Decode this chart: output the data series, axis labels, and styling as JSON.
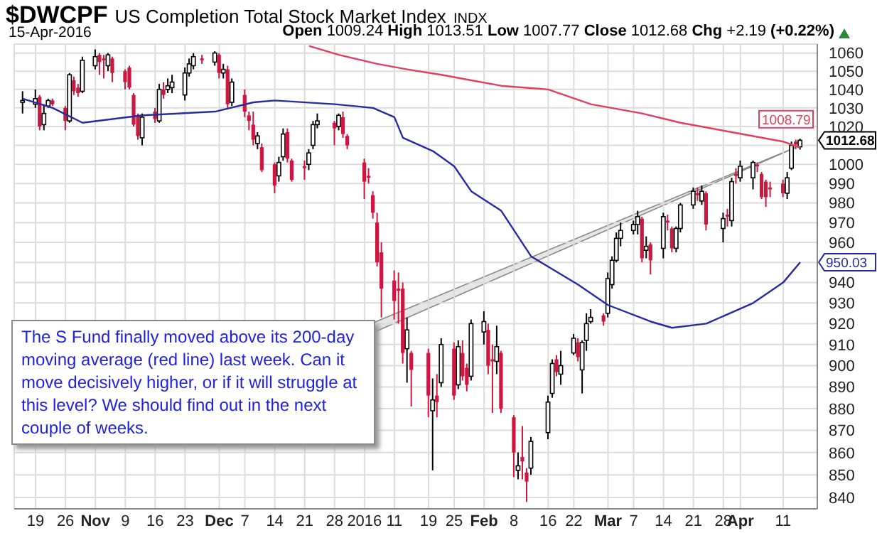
{
  "chart_data": {
    "type": "candlestick",
    "title": "$DWCPF",
    "subtitle": "US Completion Total Stock Market Index",
    "annotations": [
      "INDX",
      "15-Apr-2016",
      "Open 1009.24 High 1013.51 Low 1007.77 Close 1012.68 Chg +2.19 (+0.22%)",
      {
        "text": "The S Fund finally moved above its 200-day moving average (red line) last week. Can it move decisively higher, or if it will struggle at this level? We should find out in the next couple of weeks.",
        "x": "2016-04-14",
        "y": 1009
      }
    ],
    "x": [
      "2015-10-16",
      "2015-10-19",
      "2015-10-20",
      "2015-10-21",
      "2015-10-22",
      "2015-10-23",
      "2015-10-26",
      "2015-10-27",
      "2015-10-28",
      "2015-10-29",
      "2015-10-30",
      "2015-11-02",
      "2015-11-03",
      "2015-11-04",
      "2015-11-05",
      "2015-11-06",
      "2015-11-09",
      "2015-11-10",
      "2015-11-11",
      "2015-11-12",
      "2015-11-13",
      "2015-11-16",
      "2015-11-17",
      "2015-11-18",
      "2015-11-19",
      "2015-11-20",
      "2015-11-23",
      "2015-11-24",
      "2015-11-25",
      "2015-11-27",
      "2015-11-30",
      "2015-12-01",
      "2015-12-02",
      "2015-12-03",
      "2015-12-04",
      "2015-12-07",
      "2015-12-08",
      "2015-12-09",
      "2015-12-10",
      "2015-12-11",
      "2015-12-14",
      "2015-12-15",
      "2015-12-16",
      "2015-12-17",
      "2015-12-18",
      "2015-12-21",
      "2015-12-22",
      "2015-12-23",
      "2015-12-24",
      "2015-12-28",
      "2015-12-29",
      "2015-12-30",
      "2015-12-31",
      "2016-01-04",
      "2016-01-05",
      "2016-01-06",
      "2016-01-07",
      "2016-01-08",
      "2016-01-11",
      "2016-01-12",
      "2016-01-13",
      "2016-01-14",
      "2016-01-15",
      "2016-01-19",
      "2016-01-20",
      "2016-01-21",
      "2016-01-22",
      "2016-01-25",
      "2016-01-26",
      "2016-01-27",
      "2016-01-28",
      "2016-01-29",
      "2016-02-01",
      "2016-02-02",
      "2016-02-03",
      "2016-02-04",
      "2016-02-05",
      "2016-02-08",
      "2016-02-09",
      "2016-02-10",
      "2016-02-11",
      "2016-02-12",
      "2016-02-16",
      "2016-02-17",
      "2016-02-18",
      "2016-02-19",
      "2016-02-22",
      "2016-02-23",
      "2016-02-24",
      "2016-02-25",
      "2016-02-26",
      "2016-02-29",
      "2016-03-01",
      "2016-03-02",
      "2016-03-03",
      "2016-03-04",
      "2016-03-07",
      "2016-03-08",
      "2016-03-09",
      "2016-03-10",
      "2016-03-11",
      "2016-03-14",
      "2016-03-15",
      "2016-03-16",
      "2016-03-17",
      "2016-03-18",
      "2016-03-21",
      "2016-03-22",
      "2016-03-23",
      "2016-03-24",
      "2016-03-28",
      "2016-03-29",
      "2016-03-30",
      "2016-03-31",
      "2016-04-01",
      "2016-04-04",
      "2016-04-05",
      "2016-04-06",
      "2016-04-07",
      "2016-04-08",
      "2016-04-11",
      "2016-04-12",
      "2016-04-13",
      "2016-04-14",
      "2016-04-15"
    ],
    "ohlc": [
      [
        1033,
        1039,
        1027,
        1034
      ],
      [
        1032,
        1040,
        1030,
        1035
      ],
      [
        1036,
        1037,
        1018,
        1020
      ],
      [
        1021,
        1032,
        1018,
        1027
      ],
      [
        1031,
        1035,
        1030,
        1034
      ],
      [
        1034,
        1035,
        1031,
        1032
      ],
      [
        1030,
        1031,
        1018,
        1023
      ],
      [
        1023,
        1049,
        1022,
        1048
      ],
      [
        1045,
        1047,
        1037,
        1039
      ],
      [
        1041,
        1043,
        1036,
        1038
      ],
      [
        1039,
        1058,
        1038,
        1056
      ],
      [
        1053,
        1062,
        1051,
        1058
      ],
      [
        1059,
        1060,
        1048,
        1055
      ],
      [
        1057,
        1059,
        1046,
        1056
      ],
      [
        1053,
        1060,
        1050,
        1059
      ],
      [
        1057,
        1058,
        1044,
        1049
      ],
      [
        1050,
        1051,
        1040,
        1044
      ],
      [
        1052,
        1053,
        1040,
        1041
      ],
      [
        1037,
        1038,
        1020,
        1021
      ],
      [
        1026,
        1027,
        1013,
        1015
      ],
      [
        1014,
        1027,
        1010,
        1025
      ],
      [
        1028,
        1030,
        1022,
        1024
      ],
      [
        1023,
        1043,
        1022,
        1040
      ],
      [
        1040,
        1044,
        1035,
        1037
      ],
      [
        1040,
        1046,
        1038,
        1042
      ],
      [
        1041,
        1048,
        1038,
        1044
      ],
      [
        1037,
        1052,
        1034,
        1049
      ],
      [
        1049,
        1057,
        1047,
        1054
      ],
      [
        1053,
        1060,
        1051,
        1058
      ],
      [
        1057,
        1059,
        1054,
        1056
      ],
      [
        1055,
        1061,
        1053,
        1060
      ],
      [
        1059,
        1060,
        1046,
        1049
      ],
      [
        1049,
        1054,
        1046,
        1051
      ],
      [
        1051,
        1053,
        1030,
        1032
      ],
      [
        1033,
        1046,
        1031,
        1044
      ],
      [
        1037,
        1040,
        1025,
        1028
      ],
      [
        1026,
        1028,
        1018,
        1023
      ],
      [
        1021,
        1028,
        1010,
        1013
      ],
      [
        1011,
        1017,
        1008,
        1015
      ],
      [
        1009,
        1011,
        996,
        997
      ],
      [
        1000,
        1001,
        985,
        989
      ],
      [
        994,
        1004,
        991,
        1001
      ],
      [
        1004,
        1019,
        1002,
        1016
      ],
      [
        1017,
        1019,
        1001,
        1003
      ],
      [
        1002,
        1003,
        991,
        992
      ],
      [
        999,
        1002,
        992,
        998
      ],
      [
        1000,
        1008,
        997,
        1006
      ],
      [
        1010,
        1023,
        1008,
        1021
      ],
      [
        1021,
        1027,
        1019,
        1023
      ],
      [
        1022,
        1023,
        1010,
        1019
      ],
      [
        1020,
        1027,
        1018,
        1026
      ],
      [
        1025,
        1028,
        1014,
        1016
      ],
      [
        1015,
        1016,
        1008,
        1010
      ],
      [
        1001,
        1003,
        982,
        991
      ],
      [
        994,
        998,
        990,
        993
      ],
      [
        984,
        986,
        972,
        975
      ],
      [
        970,
        975,
        948,
        950
      ],
      [
        955,
        960,
        923,
        937
      ],
      [
        941,
        946,
        922,
        931
      ],
      [
        937,
        945,
        920,
        936
      ],
      [
        937,
        940,
        901,
        906
      ],
      [
        908,
        923,
        892,
        917
      ],
      [
        906,
        907,
        881,
        898
      ],
      [
        906,
        908,
        876,
        886
      ],
      [
        879,
        894,
        852,
        884
      ],
      [
        886,
        896,
        876,
        883
      ],
      [
        892,
        913,
        890,
        910
      ],
      [
        908,
        911,
        884,
        886
      ],
      [
        891,
        912,
        889,
        909
      ],
      [
        906,
        912,
        893,
        895
      ],
      [
        899,
        901,
        888,
        891
      ],
      [
        895,
        922,
        893,
        920
      ],
      [
        916,
        926,
        910,
        921
      ],
      [
        917,
        920,
        896,
        900
      ],
      [
        903,
        910,
        878,
        902
      ],
      [
        902,
        919,
        896,
        909
      ],
      [
        906,
        907,
        878,
        880
      ],
      [
        876,
        877,
        849,
        860
      ],
      [
        852,
        860,
        848,
        854
      ],
      [
        858,
        872,
        848,
        856
      ],
      [
        851,
        853,
        838,
        847
      ],
      [
        853,
        867,
        850,
        865
      ],
      [
        869,
        886,
        866,
        883
      ],
      [
        887,
        903,
        885,
        901
      ],
      [
        903,
        905,
        895,
        897
      ],
      [
        896,
        907,
        891,
        900
      ],
      [
        906,
        915,
        905,
        913
      ],
      [
        911,
        913,
        902,
        904
      ],
      [
        898,
        912,
        887,
        911
      ],
      [
        912,
        925,
        907,
        920
      ],
      [
        921,
        927,
        920,
        923
      ],
      [
        924,
        925,
        919,
        921
      ],
      [
        925,
        945,
        923,
        942
      ],
      [
        939,
        953,
        937,
        951
      ],
      [
        951,
        965,
        950,
        962
      ],
      [
        962,
        970,
        958,
        966
      ],
      [
        966,
        971,
        964,
        969
      ],
      [
        969,
        976,
        964,
        973
      ],
      [
        972,
        973,
        950,
        952
      ],
      [
        956,
        963,
        952,
        958
      ],
      [
        959,
        960,
        944,
        951
      ],
      [
        957,
        975,
        952,
        973
      ],
      [
        971,
        974,
        966,
        970
      ],
      [
        967,
        968,
        955,
        957
      ],
      [
        957,
        968,
        955,
        967
      ],
      [
        967,
        980,
        965,
        979
      ],
      [
        979,
        988,
        977,
        986
      ],
      [
        985,
        988,
        981,
        984
      ],
      [
        981,
        989,
        979,
        986
      ],
      [
        985,
        986,
        966,
        969
      ],
      [
        967,
        975,
        960,
        972
      ],
      [
        974,
        977,
        968,
        973
      ],
      [
        971,
        993,
        968,
        991
      ],
      [
        995,
        998,
        990,
        994
      ],
      [
        993,
        1002,
        991,
        999
      ],
      [
        993,
        1002,
        987,
        1001
      ],
      [
        1000,
        1001,
        996,
        999
      ],
      [
        995,
        996,
        982,
        983
      ],
      [
        991,
        992,
        978,
        983
      ],
      [
        988,
        991,
        983,
        987
      ],
      [
        990,
        992,
        983,
        985
      ],
      [
        985,
        996,
        982,
        993
      ],
      [
        998,
        1012,
        997,
        1010
      ],
      [
        1012,
        1013,
        1008,
        1010.49
      ],
      [
        1009.24,
        1013.51,
        1007.77,
        1012.68
      ]
    ],
    "value_labels": [
      null,
      null,
      null,
      null,
      null,
      null,
      null,
      null,
      null,
      null,
      null,
      null,
      null,
      null,
      null,
      null,
      null,
      null,
      null,
      null,
      null,
      null,
      null,
      null,
      null,
      null,
      null,
      null,
      null,
      null,
      null,
      null,
      null,
      null,
      null,
      null,
      null,
      null,
      null,
      null,
      null,
      null,
      null,
      null,
      null,
      null,
      null,
      null,
      null,
      null,
      null,
      null,
      null,
      null,
      null,
      null,
      null,
      null,
      null,
      null,
      null,
      null,
      null,
      null,
      null,
      null,
      null,
      null,
      null,
      null,
      null,
      null,
      null,
      null,
      null,
      null,
      null,
      null,
      null,
      null,
      null,
      null,
      null,
      null,
      null,
      null,
      null,
      null,
      null,
      null,
      null,
      null,
      null,
      null,
      null,
      null,
      null,
      null,
      null,
      null,
      null,
      null,
      null,
      null,
      null,
      null,
      null,
      null,
      null,
      null,
      null,
      null,
      null,
      null,
      null,
      null,
      null,
      null,
      null,
      null,
      null,
      null,
      null,
      null,
      "1012.68"
    ],
    "series": [
      {
        "type": "line",
        "color": "#2a2aa0",
        "x": [
          "2015-10-16",
          "2015-10-23",
          "2015-10-30",
          "2015-11-13",
          "2015-11-30",
          "2015-12-09",
          "2015-12-14",
          "2015-12-28",
          "2016-01-06",
          "2016-01-11",
          "2016-01-13",
          "2016-01-20",
          "2016-01-25",
          "2016-01-29",
          "2016-02-05",
          "2016-02-12",
          "2016-02-23",
          "2016-03-01",
          "2016-03-11",
          "2016-03-16",
          "2016-03-24",
          "2016-04-04",
          "2016-04-11",
          "2016-04-15"
        ],
        "values": [
          1035,
          1030,
          1022,
          1026,
          1028,
          1033,
          1034,
          1032,
          1030,
          1025,
          1014,
          1007,
          999,
          986,
          976,
          953,
          939,
          929,
          921,
          918,
          920,
          930,
          940,
          950.03
        ],
        "value_labels": [
          null,
          null,
          null,
          null,
          null,
          null,
          null,
          null,
          null,
          null,
          null,
          null,
          null,
          null,
          null,
          null,
          null,
          null,
          null,
          null,
          null,
          null,
          null,
          "950.03"
        ]
      },
      {
        "type": "line",
        "color": "#e0405e",
        "x": [
          "2015-12-22",
          "2015-12-29",
          "2016-01-07",
          "2016-01-14",
          "2016-01-22",
          "2016-01-29",
          "2016-02-05",
          "2016-02-16",
          "2016-02-26",
          "2016-03-09",
          "2016-03-18",
          "2016-03-30",
          "2016-04-11",
          "2016-04-15"
        ],
        "values": [
          1064,
          1059,
          1054,
          1051,
          1048,
          1045,
          1042,
          1040,
          1032,
          1027,
          1022,
          1017,
          1012,
          1008.79
        ],
        "value_labels": [
          null,
          null,
          null,
          null,
          null,
          null,
          null,
          null,
          null,
          null,
          null,
          null,
          null,
          "1008.79"
        ]
      }
    ],
    "xlim": [
      "2015-10-14",
      "2016-04-19"
    ],
    "log": true,
    "ylim": [
      835,
      1065
    ],
    "yticks": [
      840,
      850,
      860,
      870,
      880,
      890,
      900,
      910,
      920,
      930,
      940,
      {
        "value": 950,
        "label": null
      },
      960,
      970,
      980,
      990,
      1000,
      {
        "value": 1010,
        "label": null
      },
      1020,
      1030,
      1040,
      1050,
      1060
    ],
    "xticks": [
      {
        "value": "2015-10-19",
        "label": "19"
      },
      {
        "value": "2015-10-26",
        "label": "26"
      },
      {
        "value": "2015-11-02",
        "label": "Nov"
      },
      {
        "value": "2015-11-09",
        "label": "9"
      },
      {
        "value": "2015-11-16",
        "label": "16"
      },
      {
        "value": "2015-11-23",
        "label": "23"
      },
      {
        "value": "2015-12-01",
        "label": "Dec"
      },
      {
        "value": "2015-12-07",
        "label": "7"
      },
      {
        "value": "2015-12-14",
        "label": "14"
      },
      {
        "value": "2015-12-21",
        "label": "21"
      },
      {
        "value": "2015-12-28",
        "label": "28"
      },
      {
        "value": "2016-01-04",
        "label": "2016"
      },
      {
        "value": "2016-01-11",
        "label": "11"
      },
      {
        "value": "2016-01-19",
        "label": "19"
      },
      {
        "value": "2016-01-25",
        "label": "25"
      },
      {
        "value": "2016-02-01",
        "label": "Feb"
      },
      {
        "value": "2016-02-08",
        "label": "8"
      },
      {
        "value": "2016-02-16",
        "label": "16"
      },
      {
        "value": "2016-02-22",
        "label": "22"
      },
      {
        "value": "2016-03-01",
        "label": "Mar"
      },
      {
        "value": "2016-03-07",
        "label": "7"
      },
      {
        "value": "2016-03-14",
        "label": "14"
      },
      {
        "value": "2016-03-21",
        "label": "21"
      },
      {
        "value": "2016-03-28",
        "label": "28"
      },
      {
        "value": "2016-04-01",
        "label": "Apr"
      },
      {
        "value": "2016-04-11",
        "label": "11"
      }
    ],
    "grid": true
  }
}
